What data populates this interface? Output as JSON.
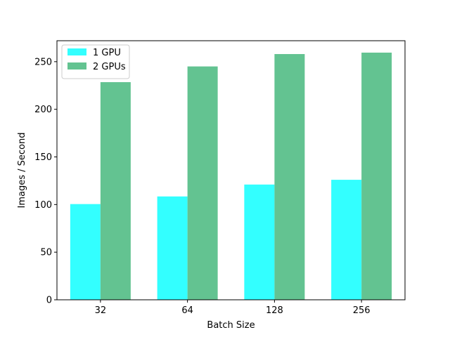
{
  "chart_data": {
    "type": "bar",
    "title": "",
    "xlabel": "Batch Size",
    "ylabel": "Images / Second",
    "categories": [
      "32",
      "64",
      "128",
      "256"
    ],
    "series": [
      {
        "name": "1 GPU",
        "values": [
          100.5,
          108.5,
          121,
          126
        ],
        "color": "#33ffff"
      },
      {
        "name": "2 GPUs",
        "values": [
          228.5,
          245,
          258,
          259.5
        ],
        "color": "#63c391"
      }
    ],
    "ylim": [
      0,
      272
    ],
    "yticks": [
      0,
      50,
      100,
      150,
      200,
      250
    ],
    "ytick_labels": [
      "0",
      "50",
      "100",
      "150",
      "200",
      "250"
    ],
    "grid": false,
    "legend_position": "top-left"
  }
}
